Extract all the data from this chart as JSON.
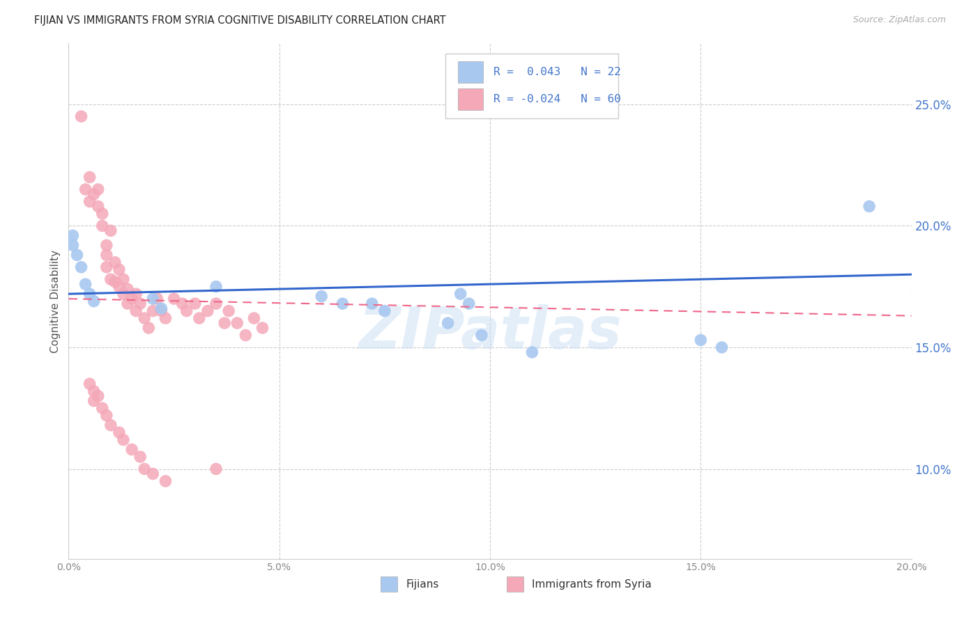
{
  "title": "FIJIAN VS IMMIGRANTS FROM SYRIA COGNITIVE DISABILITY CORRELATION CHART",
  "source": "Source: ZipAtlas.com",
  "ylabel": "Cognitive Disability",
  "y_ticks": [
    0.1,
    0.15,
    0.2,
    0.25
  ],
  "y_tick_labels": [
    "10.0%",
    "15.0%",
    "20.0%",
    "25.0%"
  ],
  "x_ticks": [
    0.0,
    0.05,
    0.1,
    0.15,
    0.2
  ],
  "x_tick_labels": [
    "0.0%",
    "5.0%",
    "10.0%",
    "15.0%",
    "20.0%"
  ],
  "x_min": 0.0,
  "x_max": 0.2,
  "y_min": 0.063,
  "y_max": 0.275,
  "color_fijian": "#a8c8f0",
  "color_syria": "#f4a8b8",
  "color_fijian_line": "#3366cc",
  "color_syria_line": "#ee6688",
  "background_color": "#ffffff",
  "grid_color": "#cccccc",
  "title_color": "#222222",
  "axis_label_color": "#4477cc",
  "watermark": "ZIPatlas",
  "fijian_x": [
    0.001,
    0.001,
    0.002,
    0.003,
    0.004,
    0.005,
    0.006,
    0.02,
    0.022,
    0.035,
    0.06,
    0.065,
    0.072,
    0.075,
    0.09,
    0.093,
    0.095,
    0.098,
    0.11,
    0.15,
    0.155,
    0.19
  ],
  "fijian_y": [
    0.196,
    0.192,
    0.188,
    0.183,
    0.176,
    0.172,
    0.169,
    0.17,
    0.166,
    0.175,
    0.171,
    0.168,
    0.168,
    0.165,
    0.16,
    0.172,
    0.168,
    0.155,
    0.148,
    0.153,
    0.15,
    0.208
  ],
  "syria_x": [
    0.003,
    0.004,
    0.005,
    0.005,
    0.006,
    0.007,
    0.007,
    0.008,
    0.008,
    0.009,
    0.009,
    0.009,
    0.01,
    0.01,
    0.011,
    0.011,
    0.012,
    0.012,
    0.013,
    0.013,
    0.014,
    0.014,
    0.015,
    0.016,
    0.016,
    0.017,
    0.018,
    0.019,
    0.02,
    0.021,
    0.022,
    0.023,
    0.025,
    0.027,
    0.028,
    0.03,
    0.031,
    0.033,
    0.035,
    0.037,
    0.038,
    0.04,
    0.042,
    0.044,
    0.046,
    0.005,
    0.006,
    0.006,
    0.007,
    0.008,
    0.009,
    0.01,
    0.012,
    0.013,
    0.015,
    0.017,
    0.018,
    0.02,
    0.023,
    0.035
  ],
  "syria_y": [
    0.245,
    0.215,
    0.22,
    0.21,
    0.213,
    0.215,
    0.208,
    0.2,
    0.205,
    0.192,
    0.188,
    0.183,
    0.198,
    0.178,
    0.185,
    0.177,
    0.175,
    0.182,
    0.172,
    0.178,
    0.168,
    0.174,
    0.17,
    0.165,
    0.172,
    0.168,
    0.162,
    0.158,
    0.165,
    0.17,
    0.165,
    0.162,
    0.17,
    0.168,
    0.165,
    0.168,
    0.162,
    0.165,
    0.168,
    0.16,
    0.165,
    0.16,
    0.155,
    0.162,
    0.158,
    0.135,
    0.132,
    0.128,
    0.13,
    0.125,
    0.122,
    0.118,
    0.115,
    0.112,
    0.108,
    0.105,
    0.1,
    0.098,
    0.095,
    0.1
  ]
}
